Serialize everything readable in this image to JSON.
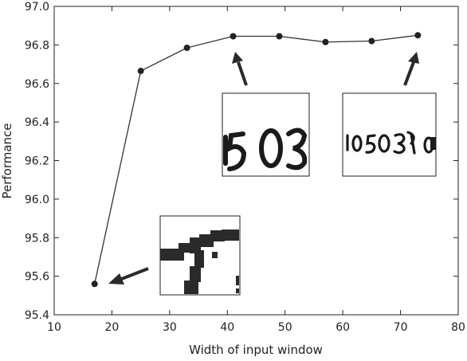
{
  "chart_data": {
    "type": "line",
    "xlabel": "Width of input window",
    "ylabel": "Performance",
    "xlim": [
      10,
      80
    ],
    "ylim": [
      95.4,
      97.0
    ],
    "xticks": [
      10,
      20,
      30,
      40,
      50,
      60,
      70,
      80
    ],
    "yticks": [
      95.4,
      95.6,
      95.8,
      96.0,
      96.2,
      96.4,
      96.6,
      96.8,
      97.0
    ],
    "xtick_labels": [
      "10",
      "20",
      "30",
      "40",
      "50",
      "60",
      "70",
      "80"
    ],
    "ytick_labels": [
      "95.4",
      "95.6",
      "95.8",
      "96.0",
      "96.2",
      "96.4",
      "96.6",
      "96.8",
      "97.0"
    ],
    "grid": false,
    "series": [
      {
        "x": [
          17,
          25,
          33,
          41,
          49,
          57,
          65,
          73
        ],
        "y": [
          95.56,
          96.665,
          96.785,
          96.845,
          96.845,
          96.815,
          96.82,
          96.85
        ],
        "color": "#333333"
      }
    ],
    "insets": [
      {
        "content": "zoomed pixel crop of handwritten stroke"
      },
      {
        "content": "handwritten digits crop"
      },
      {
        "content": "handwritten digits crop"
      }
    ]
  }
}
